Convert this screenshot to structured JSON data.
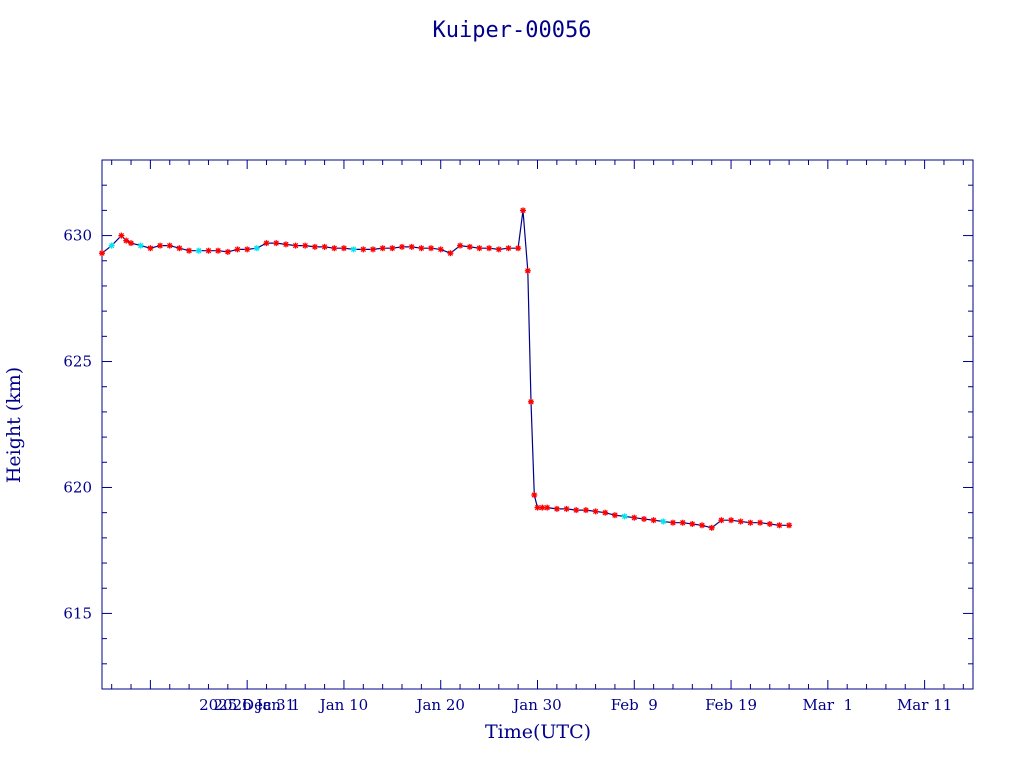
{
  "chart_data": {
    "type": "line",
    "title": "Kuiper-00056",
    "xlabel": "Time(UTC)",
    "ylabel": "Height (km)",
    "x_range": [
      "2025-12-16",
      "2026-03-16"
    ],
    "ylim": [
      612,
      633
    ],
    "y_ticks": [
      615,
      620,
      625,
      630
    ],
    "x_ticks": [
      {
        "date": "2025-12-31",
        "label": "2025 Dec 31"
      },
      {
        "date": "2026-01-01",
        "label": "2026 Jan  1"
      },
      {
        "date": "2026-01-10",
        "label": "Jan 10"
      },
      {
        "date": "2026-01-20",
        "label": "Jan 20"
      },
      {
        "date": "2026-01-30",
        "label": "Jan 30"
      },
      {
        "date": "2026-02-09",
        "label": "Feb  9"
      },
      {
        "date": "2026-02-19",
        "label": "Feb 19"
      },
      {
        "date": "2026-03-01",
        "label": "Mar  1"
      },
      {
        "date": "2026-03-11",
        "label": "Mar 11"
      }
    ],
    "colors": {
      "axis": "#00008b",
      "line": "#00008b",
      "marker_red": "#ff0000",
      "marker_cyan": "#00e5ee"
    },
    "grid": false,
    "series": [
      {
        "x": [
          "2025-12-16",
          "2025-12-17",
          "2025-12-18",
          "2025-12-18",
          "2025-12-19",
          "2025-12-20",
          "2025-12-21",
          "2025-12-22",
          "2025-12-23",
          "2025-12-24",
          "2025-12-25",
          "2025-12-26",
          "2025-12-27",
          "2025-12-28",
          "2025-12-29",
          "2025-12-30",
          "2025-12-31",
          "2026-01-01",
          "2026-01-02",
          "2026-01-03",
          "2026-01-04",
          "2026-01-05",
          "2026-01-06",
          "2026-01-07",
          "2026-01-08",
          "2026-01-09",
          "2026-01-10",
          "2026-01-11",
          "2026-01-12",
          "2026-01-13",
          "2026-01-14",
          "2026-01-15",
          "2026-01-16",
          "2026-01-17",
          "2026-01-18",
          "2026-01-19",
          "2026-01-20",
          "2026-01-21",
          "2026-01-22",
          "2026-01-23",
          "2026-01-24",
          "2026-01-25",
          "2026-01-26",
          "2026-01-27",
          "2026-01-28",
          "2026-01-28",
          "2026-01-29",
          "2026-01-29",
          "2026-01-29",
          "2026-01-30",
          "2026-01-30",
          "2026-01-31",
          "2026-02-01",
          "2026-02-02",
          "2026-02-03",
          "2026-02-04",
          "2026-02-05",
          "2026-02-06",
          "2026-02-07",
          "2026-02-08",
          "2026-02-09",
          "2026-02-10",
          "2026-02-11",
          "2026-02-12",
          "2026-02-13",
          "2026-02-14",
          "2026-02-15",
          "2026-02-16",
          "2026-02-17",
          "2026-02-18",
          "2026-02-19",
          "2026-02-20",
          "2026-02-21",
          "2026-02-22",
          "2026-02-23",
          "2026-02-24",
          "2026-02-25"
        ],
        "y": [
          629.3,
          629.6,
          630.0,
          629.8,
          629.7,
          629.6,
          629.5,
          629.6,
          629.6,
          629.5,
          629.4,
          629.4,
          629.4,
          629.4,
          629.35,
          629.45,
          629.45,
          629.5,
          629.7,
          629.7,
          629.65,
          629.6,
          629.6,
          629.55,
          629.55,
          629.5,
          629.5,
          629.45,
          629.45,
          629.45,
          629.5,
          629.5,
          629.55,
          629.55,
          629.5,
          629.5,
          629.45,
          629.3,
          629.6,
          629.55,
          629.5,
          629.5,
          629.45,
          629.5,
          629.5,
          631.0,
          628.6,
          623.4,
          619.7,
          619.2,
          619.2,
          619.2,
          619.15,
          619.15,
          619.1,
          619.1,
          619.05,
          619.0,
          618.9,
          618.85,
          618.8,
          618.75,
          618.7,
          618.65,
          618.6,
          618.6,
          618.55,
          618.5,
          618.4,
          618.7,
          618.7,
          618.65,
          618.6,
          618.6,
          618.55,
          618.5,
          618.5
        ],
        "marker_color": [
          "red",
          "cyan",
          "red",
          "red",
          "red",
          "cyan",
          "red",
          "red",
          "red",
          "red",
          "red",
          "cyan",
          "red",
          "red",
          "red",
          "red",
          "red",
          "cyan",
          "red",
          "red",
          "red",
          "red",
          "red",
          "red",
          "red",
          "red",
          "red",
          "cyan",
          "red",
          "red",
          "red",
          "red",
          "red",
          "red",
          "red",
          "red",
          "red",
          "red",
          "red",
          "red",
          "red",
          "red",
          "red",
          "red",
          "red",
          "red",
          "red",
          "red",
          "red",
          "red",
          "red",
          "red",
          "red",
          "red",
          "red",
          "red",
          "red",
          "red",
          "red",
          "cyan",
          "red",
          "red",
          "red",
          "cyan",
          "red",
          "red",
          "red",
          "red",
          "red",
          "red",
          "red",
          "red",
          "red",
          "red",
          "red",
          "red",
          "red"
        ]
      }
    ]
  }
}
